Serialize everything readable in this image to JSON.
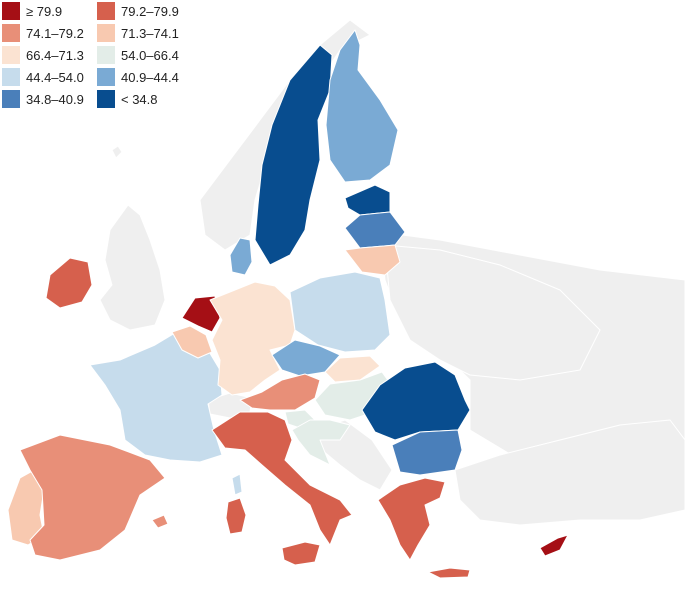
{
  "legend": [
    {
      "label": "≥ 79.9",
      "color": "#a50f15"
    },
    {
      "label": "79.2–79.9",
      "color": "#d6604d"
    },
    {
      "label": "74.1–79.2",
      "color": "#e88f78"
    },
    {
      "label": "71.3–74.1",
      "color": "#f8c9b0"
    },
    {
      "label": "66.4–71.3",
      "color": "#fbe3d2"
    },
    {
      "label": "54.0–66.4",
      "color": "#e3ede8"
    },
    {
      "label": "44.4–54.0",
      "color": "#c6dcec"
    },
    {
      "label": "40.9–44.4",
      "color": "#7aaad4"
    },
    {
      "label": "34.8–40.9",
      "color": "#4a7fba"
    },
    {
      "label": "< 34.8",
      "color": "#084d8f"
    }
  ],
  "no_data_color": "#efefef",
  "regions": [
    {
      "name": "non-eu-background",
      "class": "no-data"
    },
    {
      "name": "united-kingdom",
      "class": "no-data"
    },
    {
      "name": "norway",
      "class": "no-data"
    },
    {
      "name": "switzerland",
      "class": "no-data"
    },
    {
      "name": "balkans-non-eu",
      "class": "no-data"
    },
    {
      "name": "ukraine-belarus",
      "class": "no-data"
    },
    {
      "name": "turkey",
      "class": "no-data"
    },
    {
      "name": "iceland-fragment",
      "class": "no-data"
    },
    {
      "name": "portugal",
      "class": "71.3–74.1"
    },
    {
      "name": "spain",
      "class": "74.1–79.2"
    },
    {
      "name": "balearic-islands",
      "class": "74.1–79.2"
    },
    {
      "name": "france",
      "class": "44.4–54.0"
    },
    {
      "name": "corsica",
      "class": "44.4–54.0"
    },
    {
      "name": "belgium",
      "class": "71.3–74.1"
    },
    {
      "name": "netherlands",
      "class": "≥ 79.9"
    },
    {
      "name": "germany",
      "class": "66.4–71.3"
    },
    {
      "name": "denmark",
      "class": "40.9–44.4"
    },
    {
      "name": "ireland",
      "class": "79.2–79.9"
    },
    {
      "name": "sweden",
      "class": "< 34.8"
    },
    {
      "name": "finland",
      "class": "40.9–44.4"
    },
    {
      "name": "estonia",
      "class": "< 34.8"
    },
    {
      "name": "latvia",
      "class": "34.8–40.9"
    },
    {
      "name": "lithuania",
      "class": "71.3–74.1"
    },
    {
      "name": "poland",
      "class": "44.4–54.0"
    },
    {
      "name": "czechia",
      "class": "40.9–44.4"
    },
    {
      "name": "slovakia",
      "class": "66.4–71.3"
    },
    {
      "name": "austria",
      "class": "74.1–79.2"
    },
    {
      "name": "hungary",
      "class": "54.0–66.4"
    },
    {
      "name": "slovenia",
      "class": "54.0–66.4"
    },
    {
      "name": "croatia",
      "class": "54.0–66.4"
    },
    {
      "name": "italy",
      "class": "79.2–79.9"
    },
    {
      "name": "sicily",
      "class": "79.2–79.9"
    },
    {
      "name": "sardinia",
      "class": "79.2–79.9"
    },
    {
      "name": "romania",
      "class": "< 34.8"
    },
    {
      "name": "bulgaria",
      "class": "34.8–40.9"
    },
    {
      "name": "greece",
      "class": "79.2–79.9"
    },
    {
      "name": "crete",
      "class": "79.2–79.9"
    },
    {
      "name": "cyprus",
      "class": "≥ 79.9"
    }
  ]
}
